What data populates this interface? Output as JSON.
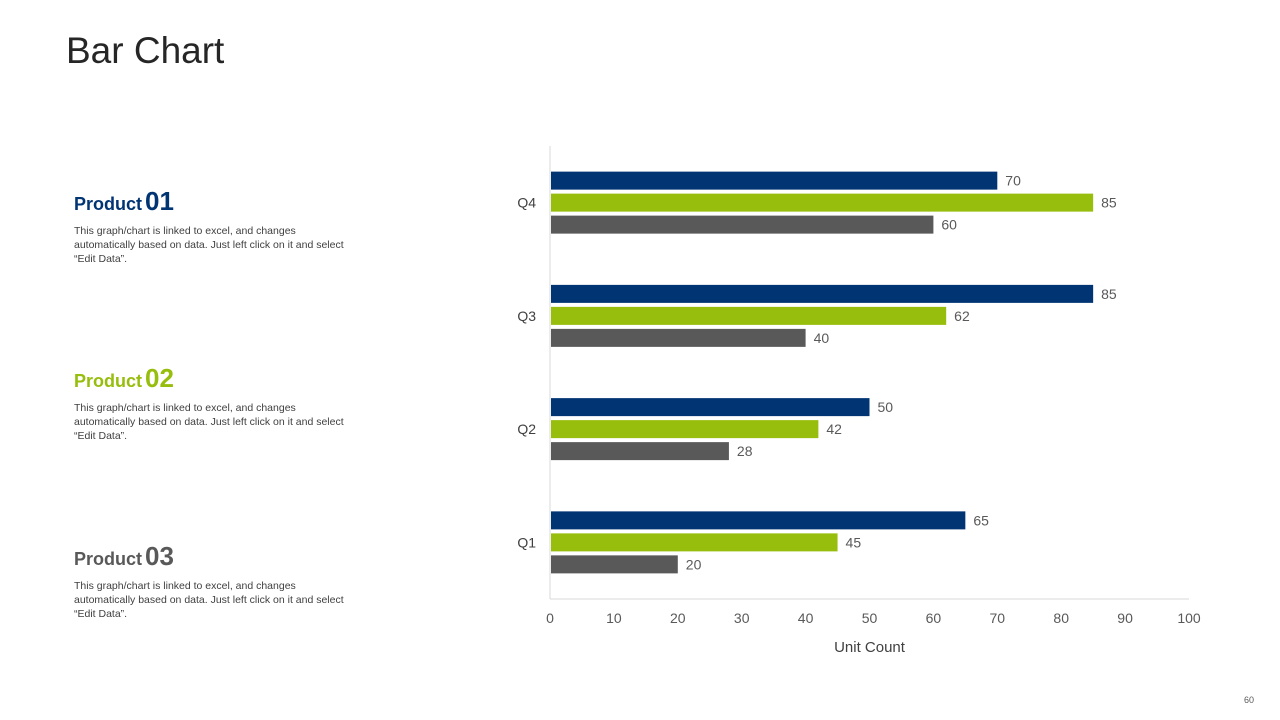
{
  "title": "Bar Chart",
  "page_number": "60",
  "products": [
    {
      "word": "Product",
      "num": "01",
      "description": "This graph/chart is linked to excel, and changes automatically based on data. Just left click on it and select “Edit Data”."
    },
    {
      "word": "Product",
      "num": "02",
      "description": "This graph/chart is linked to excel, and changes automatically based on data. Just left click on it and select “Edit Data”."
    },
    {
      "word": "Product",
      "num": "03",
      "description": "This graph/chart is linked to excel, and changes automatically based on data. Just left click on it and select “Edit Data”."
    }
  ],
  "colors": {
    "product_01": "#003473",
    "product_02": "#97bd0d",
    "product_03": "#595959"
  },
  "chart_data": {
    "type": "bar",
    "orientation": "horizontal",
    "categories": [
      "Q1",
      "Q2",
      "Q3",
      "Q4"
    ],
    "series": [
      {
        "name": "Product 01",
        "values": [
          65,
          50,
          85,
          70
        ]
      },
      {
        "name": "Product 02",
        "values": [
          45,
          42,
          62,
          85
        ]
      },
      {
        "name": "Product 03",
        "values": [
          20,
          28,
          40,
          60
        ]
      }
    ],
    "xlabel": "Unit Count",
    "ylabel": "",
    "xlim": [
      0,
      100
    ],
    "xticks": [
      0,
      10,
      20,
      30,
      40,
      50,
      60,
      70,
      80,
      90,
      100
    ],
    "grid": false,
    "legend": "none"
  }
}
